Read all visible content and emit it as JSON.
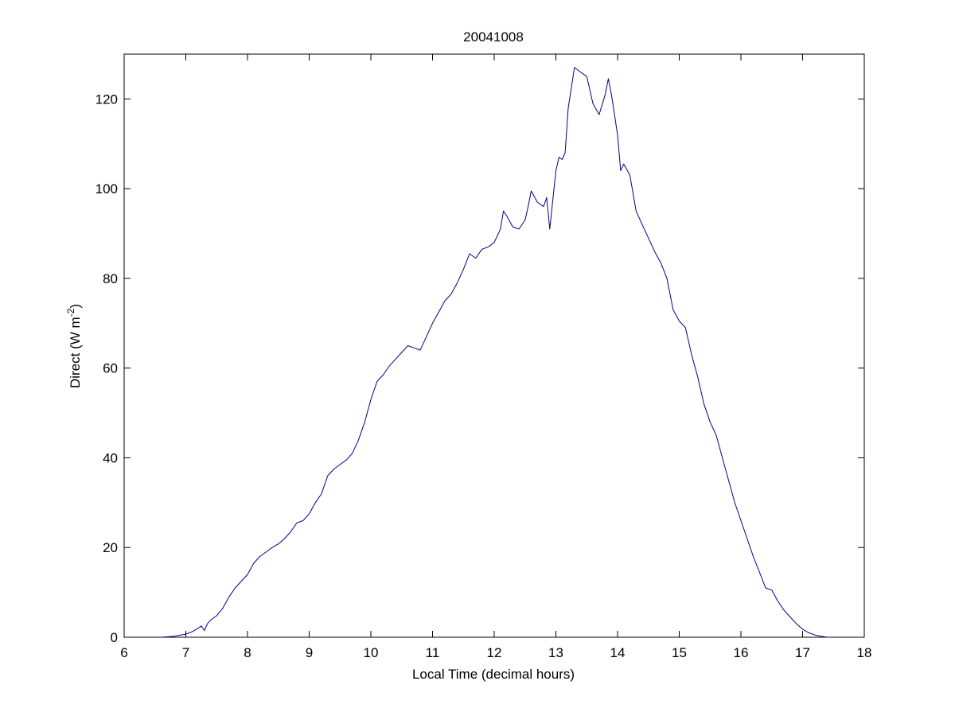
{
  "chart_data": {
    "type": "line",
    "title": "20041008",
    "xlabel": "Local Time (decimal hours)",
    "ylabel": {
      "main": "Direct (W m",
      "superscript": "-2",
      "close": ")"
    },
    "xlim": [
      6,
      18
    ],
    "ylim": [
      0,
      130
    ],
    "xticks": [
      6,
      7,
      8,
      9,
      10,
      11,
      12,
      13,
      14,
      15,
      16,
      17,
      18
    ],
    "yticks": [
      0,
      20,
      40,
      60,
      80,
      100,
      120
    ],
    "grid": false,
    "legend": "none",
    "colors": {
      "line": "#00008B",
      "axes": "#000000",
      "background": "#FFFFFF"
    },
    "series": [
      {
        "x": [
          6.6,
          6.8,
          7.0,
          7.1,
          7.2,
          7.25,
          7.3,
          7.35,
          7.4,
          7.5,
          7.6,
          7.7,
          7.8,
          7.9,
          8.0,
          8.1,
          8.2,
          8.3,
          8.4,
          8.5,
          8.6,
          8.7,
          8.8,
          8.9,
          9.0,
          9.1,
          9.2,
          9.3,
          9.4,
          9.5,
          9.6,
          9.7,
          9.8,
          9.9,
          10.0,
          10.1,
          10.2,
          10.3,
          10.4,
          10.5,
          10.6,
          10.7,
          10.8,
          10.9,
          11.0,
          11.1,
          11.2,
          11.3,
          11.4,
          11.5,
          11.6,
          11.7,
          11.8,
          11.9,
          12.0,
          12.1,
          12.15,
          12.2,
          12.3,
          12.4,
          12.5,
          12.55,
          12.6,
          12.7,
          12.8,
          12.85,
          12.9,
          13.0,
          13.05,
          13.1,
          13.15,
          13.2,
          13.3,
          13.4,
          13.5,
          13.6,
          13.7,
          13.8,
          13.85,
          13.9,
          14.0,
          14.05,
          14.1,
          14.2,
          14.3,
          14.4,
          14.5,
          14.6,
          14.7,
          14.8,
          14.9,
          15.0,
          15.1,
          15.2,
          15.3,
          15.4,
          15.5,
          15.6,
          15.7,
          15.8,
          15.9,
          16.0,
          16.1,
          16.2,
          16.3,
          16.4,
          16.5,
          16.6,
          16.7,
          16.8,
          16.9,
          17.0,
          17.1,
          17.2,
          17.3,
          17.4
        ],
        "y": [
          0.0,
          0.2,
          0.7,
          1.2,
          2.0,
          2.5,
          1.5,
          3.0,
          3.8,
          4.8,
          6.5,
          9.0,
          11.0,
          12.5,
          14.0,
          16.5,
          18.0,
          19.0,
          20.0,
          20.8,
          22.0,
          23.5,
          25.5,
          26.0,
          27.5,
          30.0,
          32.0,
          36.0,
          37.5,
          38.5,
          39.5,
          41.0,
          44.0,
          48.0,
          53.0,
          57.0,
          58.5,
          60.5,
          62.0,
          63.5,
          65.0,
          64.5,
          64.0,
          67.0,
          70.0,
          72.5,
          75.0,
          76.5,
          79.0,
          82.0,
          85.5,
          84.5,
          86.5,
          87.0,
          88.0,
          91.0,
          95.0,
          94.0,
          91.5,
          91.0,
          93.0,
          96.0,
          99.5,
          97.0,
          96.0,
          98.0,
          91.0,
          104.0,
          107.0,
          106.5,
          108.0,
          118.0,
          127.0,
          126.0,
          125.0,
          119.0,
          116.5,
          121.0,
          124.5,
          121.0,
          112.0,
          104.0,
          105.5,
          103.0,
          95.0,
          92.0,
          89.0,
          86.0,
          83.5,
          80.0,
          73.0,
          70.5,
          69.0,
          63.0,
          58.0,
          52.0,
          48.0,
          45.0,
          40.0,
          35.0,
          30.0,
          26.0,
          22.0,
          18.0,
          14.5,
          11.0,
          10.5,
          8.0,
          6.0,
          4.5,
          3.0,
          1.8,
          1.0,
          0.5,
          0.2,
          0.0
        ]
      }
    ]
  }
}
